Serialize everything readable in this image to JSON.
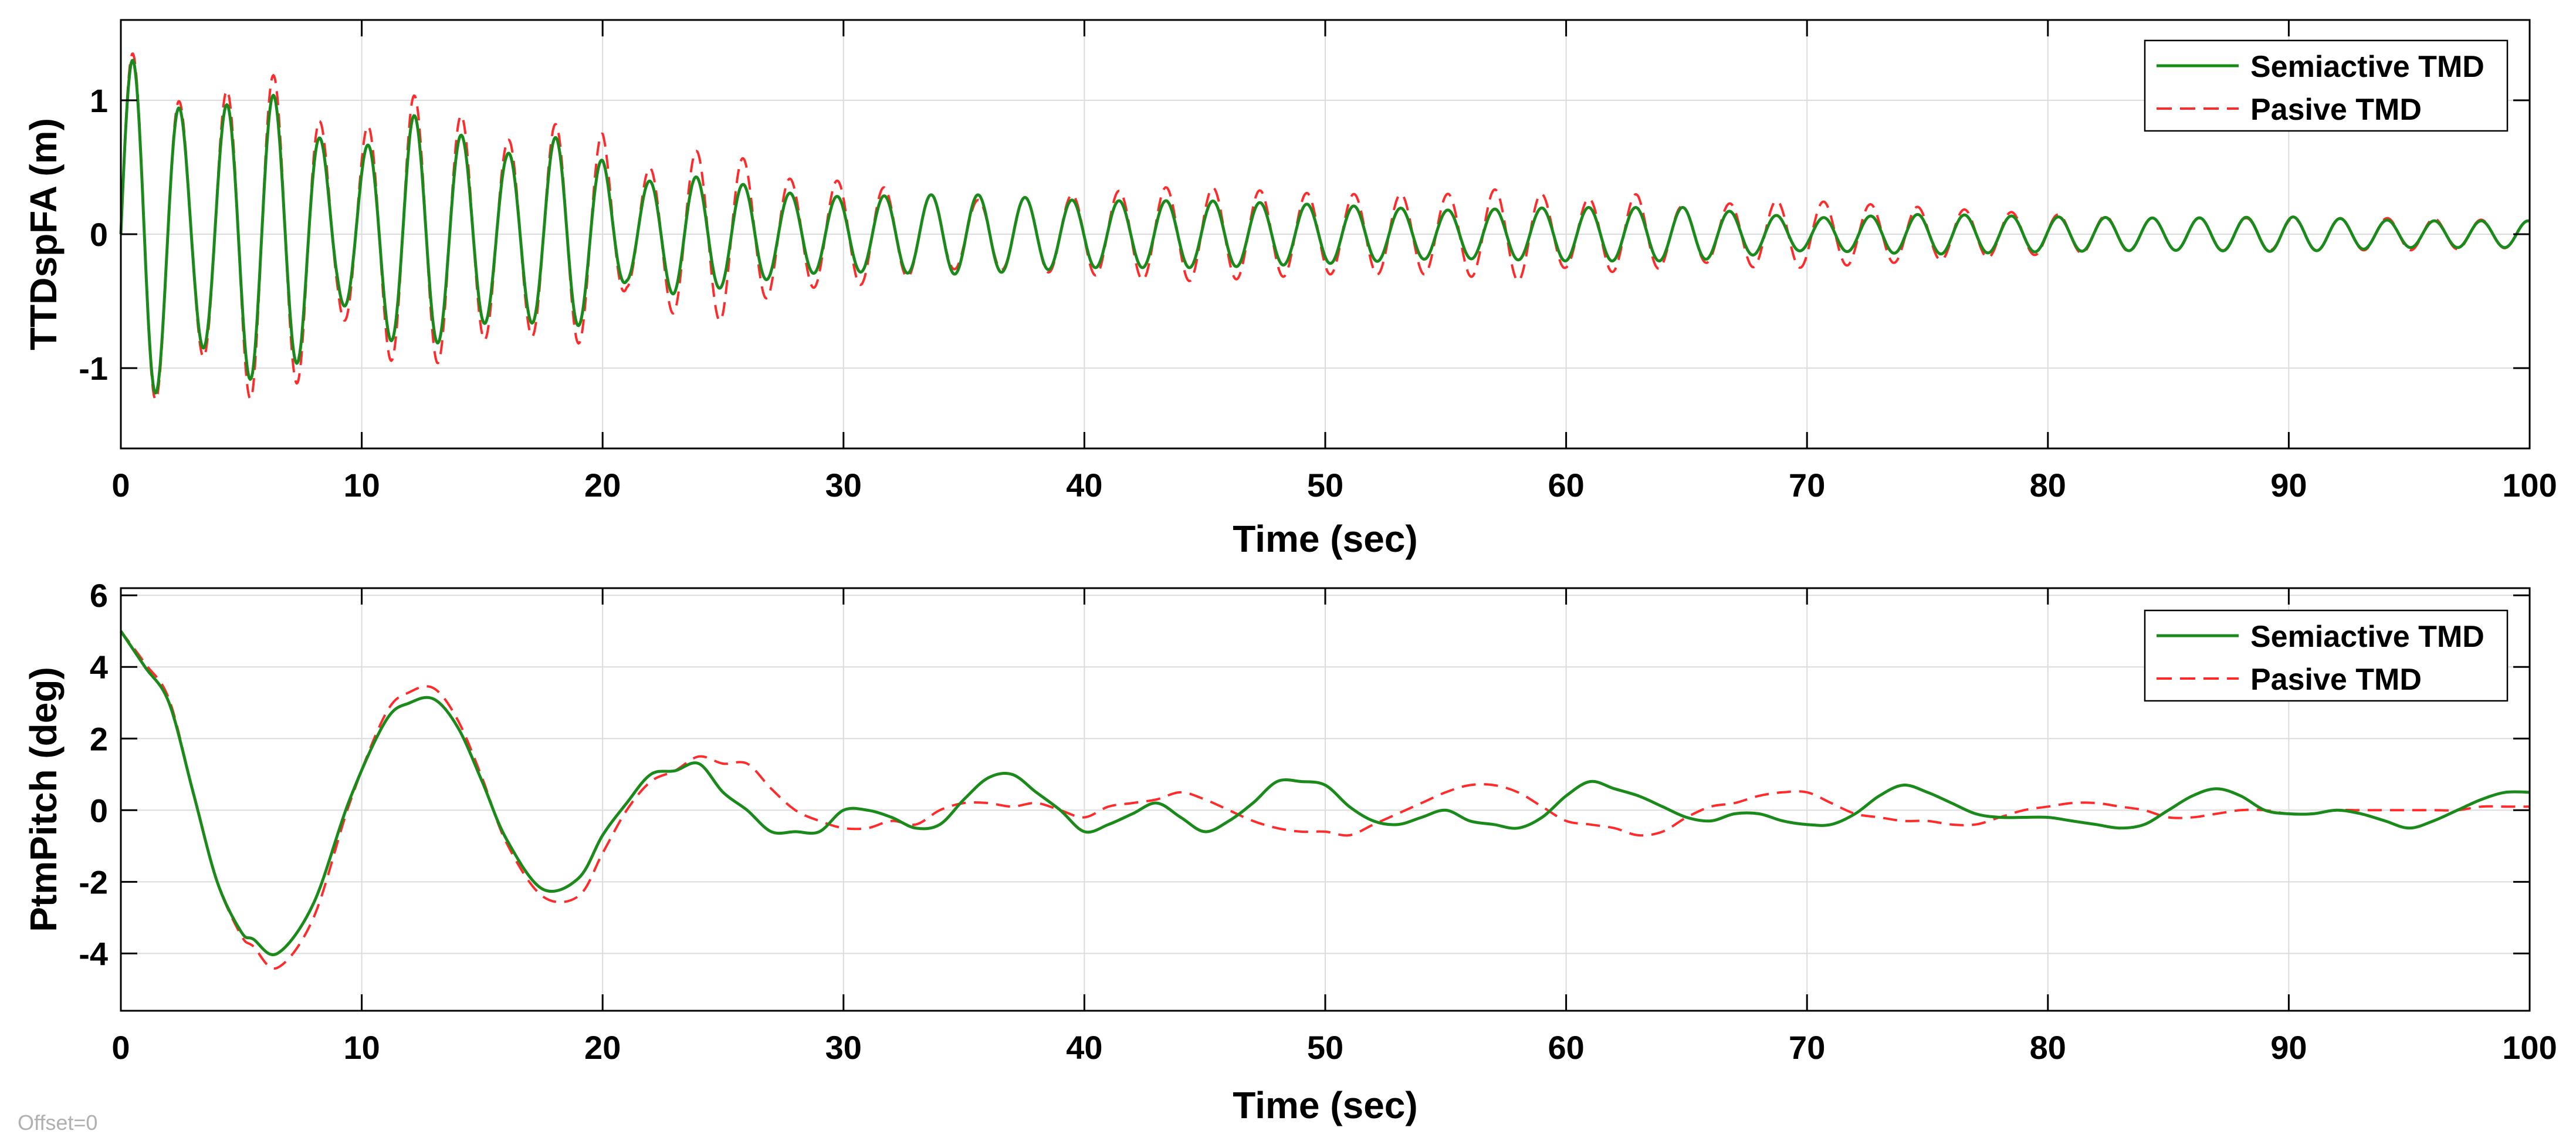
{
  "offset_text": "Offset=0",
  "colors": {
    "semiactive": "#1a8a1a",
    "pasive": "#ff2a2a",
    "grid": "#dcdcdc",
    "axis": "#000000"
  },
  "chart_data": [
    {
      "type": "line",
      "xlabel": "Time (sec)",
      "ylabel": "TTDspFA (m)",
      "xlim": [
        0,
        100
      ],
      "ylim": [
        -1.6,
        1.6
      ],
      "xticks": [
        0,
        10,
        20,
        30,
        40,
        50,
        60,
        70,
        80,
        90,
        100
      ],
      "yticks": [
        -1,
        0,
        1
      ],
      "grid": true,
      "legend_position": "top-right",
      "waveform": "oscillation",
      "series": [
        {
          "name": "Semiactive TMD",
          "style": "solid",
          "period": 1.95,
          "envelope_t": [
            0,
            1,
            3,
            5.5,
            7.5,
            9,
            10.5,
            12,
            14,
            16,
            18.5,
            20,
            21,
            23,
            25,
            28,
            30,
            35,
            40,
            45,
            50,
            55,
            60,
            65,
            70,
            75,
            80,
            85,
            90,
            95,
            100
          ],
          "envelope_a": [
            1.3,
            1.3,
            0.8,
            1.1,
            0.95,
            0.5,
            0.7,
            0.9,
            0.75,
            0.6,
            0.75,
            0.55,
            0.35,
            0.45,
            0.4,
            0.3,
            0.28,
            0.3,
            0.25,
            0.25,
            0.22,
            0.18,
            0.2,
            0.2,
            0.12,
            0.15,
            0.13,
            0.12,
            0.13,
            0.1,
            0.1
          ]
        },
        {
          "name": "Pasive TMD",
          "style": "dashed",
          "period": 1.95,
          "envelope_t": [
            0,
            1,
            3,
            5.5,
            7.5,
            9,
            10.5,
            12,
            14,
            16,
            18.5,
            20,
            21,
            23,
            25,
            26.5,
            28,
            30,
            35,
            40,
            43,
            45,
            50,
            55,
            58,
            60,
            63,
            65,
            68,
            70,
            75,
            80,
            85,
            90,
            95,
            100
          ],
          "envelope_a": [
            1.35,
            1.35,
            0.85,
            1.25,
            1.1,
            0.6,
            0.85,
            1.05,
            0.9,
            0.7,
            0.85,
            0.75,
            0.4,
            0.6,
            0.65,
            0.5,
            0.4,
            0.4,
            0.25,
            0.3,
            0.35,
            0.35,
            0.3,
            0.3,
            0.35,
            0.25,
            0.3,
            0.2,
            0.25,
            0.25,
            0.2,
            0.15,
            0.12,
            0.12,
            0.12,
            0.1
          ]
        }
      ],
      "legend": [
        "Semiactive TMD",
        "Pasive TMD"
      ]
    },
    {
      "type": "line",
      "xlabel": "Time (sec)",
      "ylabel": "PtmPitch (deg)",
      "xlim": [
        0,
        100
      ],
      "ylim": [
        -5.6,
        6.2
      ],
      "xticks": [
        0,
        10,
        20,
        30,
        40,
        50,
        60,
        70,
        80,
        90,
        100
      ],
      "yticks": [
        -4,
        -2,
        0,
        2,
        4,
        6
      ],
      "grid": true,
      "legend_position": "top-right",
      "waveform": "points",
      "series": [
        {
          "name": "Semiactive TMD",
          "style": "solid",
          "x": [
            0,
            1,
            2,
            3,
            4,
            5,
            5.5,
            6.5,
            8,
            9.5,
            11,
            12,
            13,
            14,
            15,
            16,
            17.5,
            19,
            20,
            21,
            22,
            23,
            24,
            25,
            26,
            27,
            28,
            29,
            30,
            31,
            32,
            33,
            34,
            35,
            36,
            37,
            38,
            39,
            40,
            41,
            42,
            43,
            44,
            45,
            46,
            47,
            48,
            49,
            50,
            51,
            52,
            53,
            54,
            55,
            56,
            57,
            58,
            59,
            60,
            61,
            62,
            63,
            64,
            65,
            66,
            67,
            68,
            69,
            70,
            71,
            72,
            73,
            74,
            75,
            76,
            77,
            78,
            79,
            80,
            81,
            82,
            83,
            84,
            85,
            86,
            87,
            88,
            89,
            90,
            91,
            92,
            93,
            94,
            95,
            96,
            97,
            98,
            99,
            100
          ],
          "y": [
            5.0,
            4.0,
            3.0,
            0.5,
            -2.0,
            -3.4,
            -3.6,
            -4.0,
            -2.6,
            0.3,
            2.5,
            3.0,
            3.1,
            2.3,
            0.8,
            -0.8,
            -2.2,
            -1.9,
            -0.7,
            0.2,
            1.0,
            1.1,
            1.3,
            0.5,
            0.0,
            -0.6,
            -0.6,
            -0.6,
            0.0,
            0.0,
            -0.2,
            -0.5,
            -0.4,
            0.3,
            0.9,
            1.0,
            0.5,
            0.0,
            -0.6,
            -0.4,
            -0.1,
            0.2,
            -0.2,
            -0.6,
            -0.3,
            0.2,
            0.8,
            0.8,
            0.7,
            0.1,
            -0.3,
            -0.4,
            -0.2,
            0.0,
            -0.3,
            -0.4,
            -0.5,
            -0.2,
            0.4,
            0.8,
            0.6,
            0.4,
            0.1,
            -0.2,
            -0.3,
            -0.1,
            -0.1,
            -0.3,
            -0.4,
            -0.4,
            -0.1,
            0.4,
            0.7,
            0.5,
            0.2,
            -0.1,
            -0.2,
            -0.2,
            -0.2,
            -0.3,
            -0.4,
            -0.5,
            -0.4,
            0.0,
            0.4,
            0.6,
            0.4,
            0.0,
            -0.1,
            -0.1,
            0.0,
            -0.1,
            -0.3,
            -0.5,
            -0.3,
            0.0,
            0.3,
            0.5,
            0.5
          ]
        },
        {
          "name": "Pasive TMD",
          "style": "dashed",
          "x": [
            0,
            1,
            2,
            3,
            4,
            5,
            5.5,
            6.5,
            8,
            9.5,
            11,
            12,
            13,
            14,
            15,
            16,
            17.5,
            19,
            20,
            21,
            22,
            23,
            24,
            25,
            26,
            27,
            28,
            29,
            30,
            31,
            32,
            33,
            34,
            35,
            36,
            37,
            38,
            39,
            40,
            41,
            42,
            43,
            44,
            45,
            46,
            47,
            48,
            49,
            50,
            51,
            52,
            53,
            54,
            55,
            56,
            57,
            58,
            59,
            60,
            61,
            62,
            63,
            64,
            65,
            66,
            67,
            68,
            69,
            70,
            71,
            72,
            73,
            74,
            75,
            76,
            77,
            78,
            79,
            80,
            81,
            82,
            83,
            84,
            85,
            86,
            87,
            88,
            89,
            90,
            91,
            92,
            93,
            94,
            95,
            96,
            97,
            98,
            99,
            100
          ],
          "y": [
            5.0,
            4.1,
            3.1,
            0.5,
            -2.0,
            -3.5,
            -3.8,
            -4.4,
            -3.0,
            0.2,
            2.7,
            3.3,
            3.4,
            2.5,
            0.9,
            -0.9,
            -2.4,
            -2.4,
            -1.2,
            0.0,
            0.8,
            1.1,
            1.5,
            1.3,
            1.3,
            0.6,
            0.0,
            -0.3,
            -0.5,
            -0.5,
            -0.3,
            -0.4,
            0.0,
            0.2,
            0.2,
            0.1,
            0.2,
            0.0,
            -0.2,
            0.1,
            0.2,
            0.3,
            0.5,
            0.3,
            0.0,
            -0.3,
            -0.5,
            -0.6,
            -0.6,
            -0.7,
            -0.4,
            -0.1,
            0.2,
            0.5,
            0.7,
            0.7,
            0.5,
            0.1,
            -0.3,
            -0.4,
            -0.5,
            -0.7,
            -0.6,
            -0.2,
            0.1,
            0.2,
            0.4,
            0.5,
            0.5,
            0.2,
            -0.1,
            -0.2,
            -0.3,
            -0.3,
            -0.4,
            -0.4,
            -0.2,
            0.0,
            0.1,
            0.2,
            0.2,
            0.1,
            0.0,
            -0.2,
            -0.2,
            -0.1,
            0.0,
            0.0,
            -0.1,
            -0.1,
            0.0,
            0.0,
            0.0,
            0.0,
            0.0,
            0.0,
            0.1,
            0.1,
            0.1
          ]
        }
      ],
      "legend": [
        "Semiactive TMD",
        "Pasive TMD"
      ]
    }
  ]
}
